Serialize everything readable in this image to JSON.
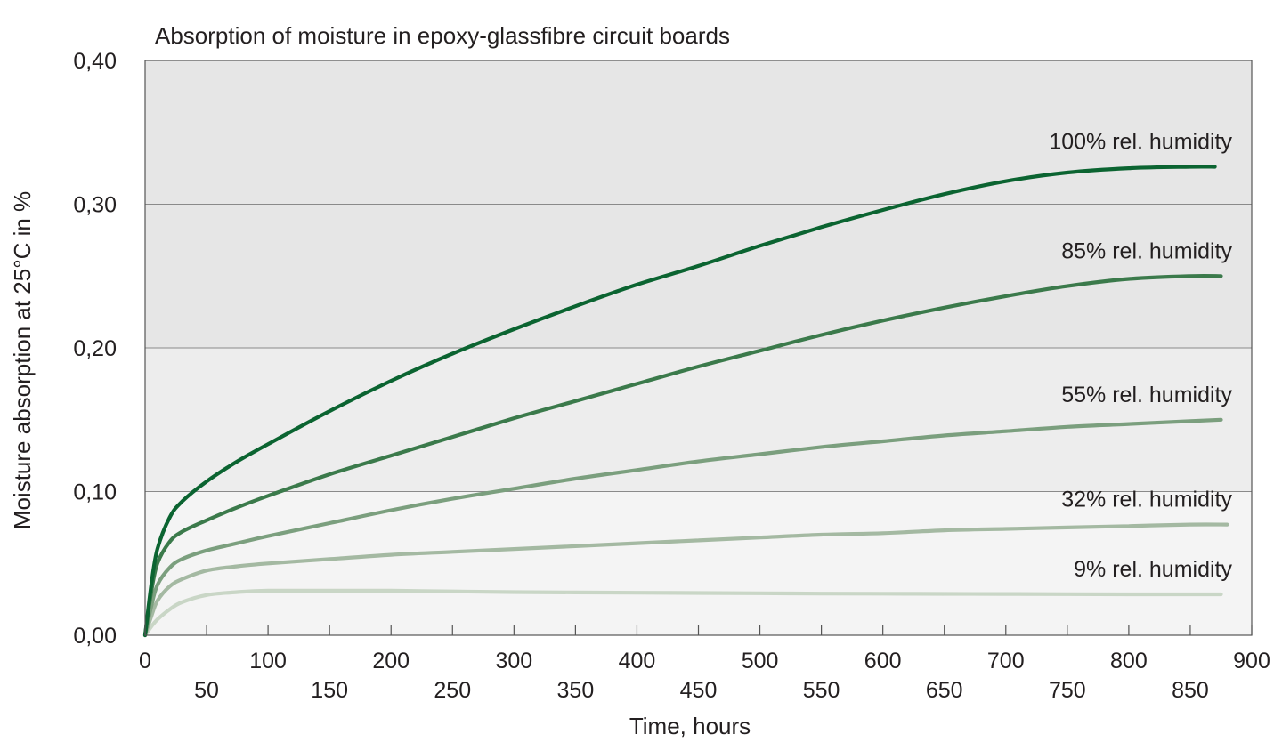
{
  "chart_data": {
    "type": "line",
    "title": "Absorption of moisture in epoxy-glassfibre circuit boards",
    "xlabel": "Time, hours",
    "ylabel": "Moisture absorption at 25°C in %",
    "xlim": [
      0,
      900
    ],
    "ylim": [
      0,
      0.4
    ],
    "x_ticks_upper": [
      "0",
      "100",
      "200",
      "300",
      "400",
      "500",
      "600",
      "700",
      "800",
      "900"
    ],
    "x_ticks_lower": [
      "50",
      "150",
      "250",
      "350",
      "450",
      "550",
      "650",
      "750",
      "850"
    ],
    "y_ticks": [
      "0,00",
      "0,10",
      "0,20",
      "0,30",
      "0,40"
    ],
    "grid": "horizontal",
    "background": {
      "upper": "#e6e6e6",
      "lower": "#f4f4f4"
    },
    "series": [
      {
        "name": "100% rel. humidity",
        "color": "#0b6431",
        "x": [
          0,
          5,
          10,
          20,
          30,
          50,
          75,
          100,
          150,
          200,
          250,
          300,
          350,
          400,
          450,
          500,
          550,
          600,
          650,
          700,
          750,
          800,
          850,
          870
        ],
        "y": [
          0,
          0.035,
          0.06,
          0.082,
          0.093,
          0.107,
          0.121,
          0.133,
          0.156,
          0.177,
          0.196,
          0.213,
          0.229,
          0.244,
          0.257,
          0.271,
          0.284,
          0.296,
          0.307,
          0.316,
          0.322,
          0.325,
          0.326,
          0.326
        ]
      },
      {
        "name": "85% rel. humidity",
        "color": "#3b7a4b",
        "x": [
          0,
          5,
          10,
          20,
          30,
          50,
          75,
          100,
          150,
          200,
          250,
          300,
          350,
          400,
          450,
          500,
          550,
          600,
          650,
          700,
          750,
          800,
          850,
          875
        ],
        "y": [
          0,
          0.03,
          0.05,
          0.065,
          0.072,
          0.08,
          0.089,
          0.097,
          0.112,
          0.125,
          0.138,
          0.151,
          0.163,
          0.175,
          0.187,
          0.198,
          0.209,
          0.219,
          0.228,
          0.236,
          0.243,
          0.248,
          0.25,
          0.25
        ]
      },
      {
        "name": "55% rel. humidity",
        "color": "#7b9f7e",
        "x": [
          0,
          5,
          10,
          20,
          30,
          50,
          75,
          100,
          150,
          200,
          250,
          300,
          350,
          400,
          450,
          500,
          550,
          600,
          650,
          700,
          750,
          800,
          850,
          875
        ],
        "y": [
          0,
          0.02,
          0.035,
          0.047,
          0.053,
          0.059,
          0.064,
          0.069,
          0.078,
          0.087,
          0.095,
          0.102,
          0.109,
          0.115,
          0.121,
          0.126,
          0.131,
          0.135,
          0.139,
          0.142,
          0.145,
          0.147,
          0.149,
          0.15
        ]
      },
      {
        "name": "32% rel. humidity",
        "color": "#a4b9a2",
        "x": [
          0,
          5,
          10,
          20,
          30,
          50,
          75,
          100,
          150,
          200,
          250,
          300,
          350,
          400,
          450,
          500,
          550,
          600,
          650,
          700,
          750,
          800,
          850,
          880
        ],
        "y": [
          0,
          0.013,
          0.024,
          0.034,
          0.039,
          0.045,
          0.048,
          0.05,
          0.053,
          0.056,
          0.058,
          0.06,
          0.062,
          0.064,
          0.066,
          0.068,
          0.07,
          0.071,
          0.073,
          0.074,
          0.075,
          0.076,
          0.077,
          0.077
        ]
      },
      {
        "name": "9% rel. humidity",
        "color": "#c9d6c6",
        "x": [
          0,
          5,
          10,
          20,
          30,
          50,
          75,
          100,
          150,
          200,
          250,
          300,
          350,
          400,
          450,
          500,
          550,
          600,
          650,
          700,
          750,
          800,
          850,
          875
        ],
        "y": [
          0,
          0.006,
          0.011,
          0.018,
          0.023,
          0.028,
          0.03,
          0.031,
          0.031,
          0.031,
          0.0305,
          0.03,
          0.0298,
          0.0296,
          0.0294,
          0.0292,
          0.029,
          0.0289,
          0.0288,
          0.0287,
          0.0286,
          0.0285,
          0.0285,
          0.0285
        ]
      }
    ]
  }
}
